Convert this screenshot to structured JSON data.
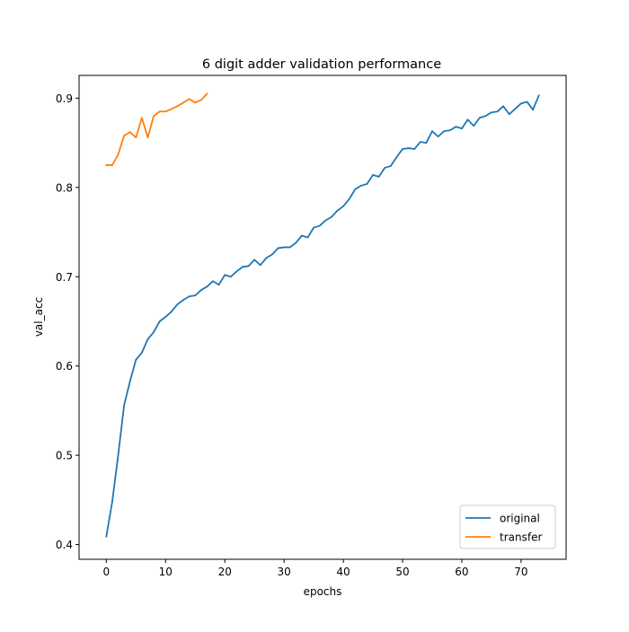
{
  "chart_data": {
    "type": "line",
    "title": "6 digit adder validation performance",
    "xlabel": "epochs",
    "ylabel": "val_acc",
    "xlim": [
      -4.6,
      77.6
    ],
    "ylim": [
      0.3835,
      0.9255
    ],
    "xticks": [
      0,
      10,
      20,
      30,
      40,
      50,
      60,
      70
    ],
    "yticks": [
      0.4,
      0.5,
      0.6,
      0.7,
      0.8,
      0.9
    ],
    "xtick_labels": [
      "0",
      "10",
      "20",
      "30",
      "40",
      "50",
      "60",
      "70"
    ],
    "ytick_labels": [
      "0.4",
      "0.5",
      "0.6",
      "0.7",
      "0.8",
      "0.9"
    ],
    "grid": false,
    "legend_position": "lower-right",
    "series": [
      {
        "name": "original",
        "color": "#1f77b4",
        "x": [
          0,
          1,
          2,
          3,
          4,
          5,
          6,
          7,
          8,
          9,
          10,
          11,
          12,
          13,
          14,
          15,
          16,
          17,
          18,
          19,
          20,
          21,
          22,
          23,
          24,
          25,
          26,
          27,
          28,
          29,
          30,
          31,
          32,
          33,
          34,
          35,
          36,
          37,
          38,
          39,
          40,
          41,
          42,
          43,
          44,
          45,
          46,
          47,
          48,
          49,
          50,
          51,
          52,
          53,
          54,
          55,
          56,
          57,
          58,
          59,
          60,
          61,
          62,
          63,
          64,
          65,
          66,
          67,
          68,
          69,
          70,
          71,
          72,
          73
        ],
        "values": [
          0.409,
          0.448,
          0.5,
          0.556,
          0.583,
          0.607,
          0.615,
          0.63,
          0.638,
          0.65,
          0.655,
          0.661,
          0.669,
          0.674,
          0.678,
          0.679,
          0.685,
          0.689,
          0.695,
          0.691,
          0.702,
          0.7,
          0.706,
          0.711,
          0.712,
          0.719,
          0.713,
          0.721,
          0.725,
          0.732,
          0.733,
          0.733,
          0.738,
          0.746,
          0.744,
          0.755,
          0.757,
          0.763,
          0.767,
          0.774,
          0.779,
          0.787,
          0.798,
          0.802,
          0.804,
          0.814,
          0.812,
          0.822,
          0.824,
          0.834,
          0.843,
          0.844,
          0.843,
          0.851,
          0.85,
          0.863,
          0.857,
          0.863,
          0.864,
          0.868,
          0.866,
          0.876,
          0.869,
          0.878,
          0.88,
          0.884,
          0.885,
          0.891,
          0.882,
          0.888,
          0.894,
          0.896,
          0.887,
          0.903
        ]
      },
      {
        "name": "transfer",
        "color": "#ff7f0e",
        "x": [
          0,
          1,
          2,
          3,
          4,
          5,
          6,
          7,
          8,
          9,
          10,
          11,
          12,
          13,
          14,
          15,
          16,
          17
        ],
        "values": [
          0.825,
          0.825,
          0.837,
          0.858,
          0.862,
          0.856,
          0.878,
          0.856,
          0.88,
          0.885,
          0.885,
          0.888,
          0.891,
          0.895,
          0.899,
          0.895,
          0.898,
          0.905
        ]
      }
    ]
  }
}
